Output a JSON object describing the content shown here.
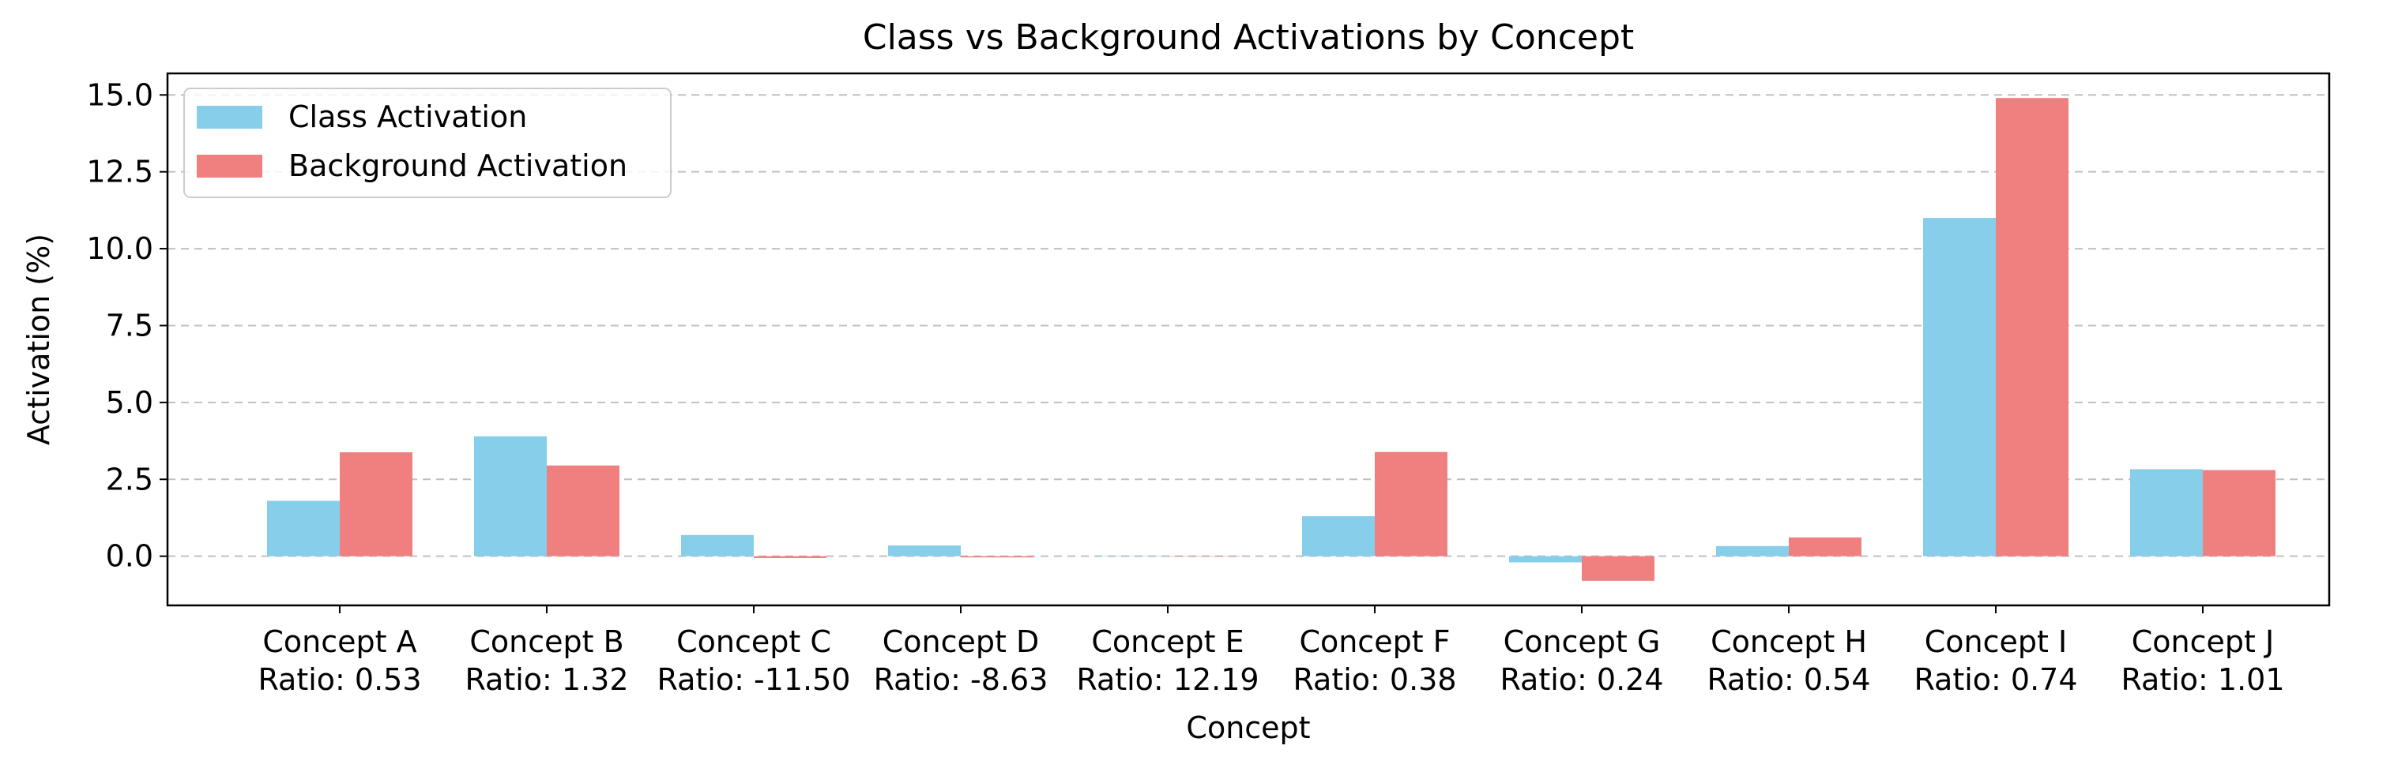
{
  "chart_data": {
    "type": "bar",
    "title": "Class vs Background Activations by Concept",
    "xlabel": "Concept",
    "ylabel": "Activation (%)",
    "ylim": [
      -1.6,
      15.7
    ],
    "yticks": [
      "0.0",
      "2.5",
      "5.0",
      "7.5",
      "10.0",
      "12.5",
      "15.0"
    ],
    "grid": "y-dashed",
    "legend_position": "top-left",
    "categories": [
      "Concept A",
      "Concept B",
      "Concept C",
      "Concept D",
      "Concept E",
      "Concept F",
      "Concept G",
      "Concept H",
      "Concept I",
      "Concept J"
    ],
    "ratio_labels": [
      "Ratio: 0.53",
      "Ratio: 1.32",
      "Ratio: -11.50",
      "Ratio: -8.63",
      "Ratio: 12.19",
      "Ratio: 0.38",
      "Ratio: 0.24",
      "Ratio: 0.54",
      "Ratio: 0.74",
      "Ratio: 1.01"
    ],
    "series": [
      {
        "name": "Class Activation",
        "color": "#87ceeb",
        "values": [
          1.8,
          3.9,
          0.69,
          0.35,
          0.01,
          1.3,
          -0.2,
          0.33,
          11.0,
          2.83
        ]
      },
      {
        "name": "Background Activation",
        "color": "#f08080",
        "values": [
          3.38,
          2.95,
          -0.06,
          -0.04,
          0.0,
          3.39,
          -0.8,
          0.61,
          14.9,
          2.8
        ]
      }
    ]
  }
}
